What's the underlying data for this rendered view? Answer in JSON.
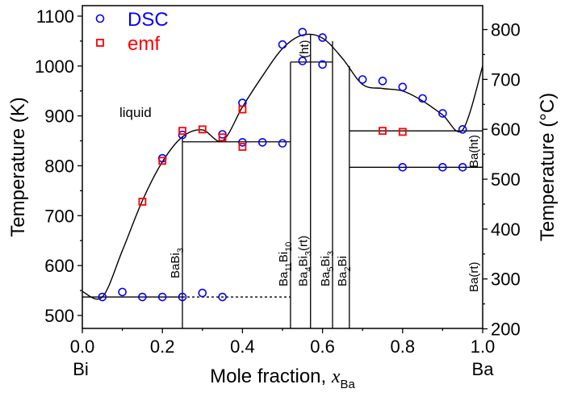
{
  "chart_data": {
    "type": "scatter",
    "title": "",
    "xlabel": "Mole fraction, ",
    "xlabel_var": "x",
    "xlabel_sub": "Ba",
    "ylabel": "Temperature (K)",
    "y2label": "Temperature (°C)",
    "xlim": [
      0,
      1
    ],
    "ylim": [
      474,
      1121
    ],
    "xticks": [
      "0.0",
      "0.2",
      "0.4",
      "0.6",
      "0.8",
      "1.0"
    ],
    "xtick_values": [
      0,
      0.2,
      0.4,
      0.6,
      0.8,
      1.0
    ],
    "yticks": [
      500,
      600,
      700,
      800,
      900,
      1000,
      1100
    ],
    "y2ticks": [
      200,
      300,
      400,
      500,
      600,
      700,
      800
    ],
    "end_labels": {
      "left": "Bi",
      "right": "Ba"
    },
    "legend": [
      {
        "name": "DSC",
        "color": "#0000ff",
        "marker": "circle"
      },
      {
        "name": "emf",
        "color": "#ff0000",
        "marker": "square"
      }
    ],
    "annotations": {
      "liquid": "liquid",
      "baht": "Ba(ht)",
      "bart": "Ba(rt)",
      "ht": "(ht)"
    },
    "phases": [
      {
        "name": "BaBi",
        "sub": "3",
        "x": 0.25
      },
      {
        "name": "Ba",
        "sub": "11",
        "name2": "Bi",
        "sub2": "10",
        "x": 0.52
      },
      {
        "name": "Ba",
        "sub": "4",
        "name2": "Bi",
        "sub2": "3",
        "suffix": "(rt)",
        "x": 0.57
      },
      {
        "name": "Ba",
        "sub": "5",
        "name2": "Bi",
        "sub2": "3",
        "x": 0.625
      },
      {
        "name": "Ba",
        "sub": "2",
        "name2": "Bi",
        "sub2": "",
        "x": 0.667
      }
    ],
    "series": [
      {
        "name": "DSC",
        "color": "#0000ff",
        "points": [
          [
            0.05,
            537
          ],
          [
            0.1,
            547
          ],
          [
            0.15,
            537
          ],
          [
            0.2,
            537
          ],
          [
            0.25,
            537
          ],
          [
            0.3,
            545
          ],
          [
            0.35,
            537
          ],
          [
            0.2,
            815
          ],
          [
            0.25,
            862
          ],
          [
            0.35,
            863
          ],
          [
            0.4,
            926
          ],
          [
            0.4,
            847
          ],
          [
            0.45,
            847
          ],
          [
            0.5,
            845
          ],
          [
            0.5,
            1043
          ],
          [
            0.55,
            1068
          ],
          [
            0.55,
            1010
          ],
          [
            0.6,
            1057
          ],
          [
            0.6,
            1003
          ],
          [
            0.7,
            973
          ],
          [
            0.75,
            970
          ],
          [
            0.8,
            958
          ],
          [
            0.85,
            935
          ],
          [
            0.9,
            905
          ],
          [
            0.95,
            873
          ],
          [
            0.8,
            797
          ],
          [
            0.9,
            797
          ],
          [
            0.95,
            797
          ]
        ]
      },
      {
        "name": "emf",
        "color": "#ff0000",
        "points": [
          [
            0.15,
            728
          ],
          [
            0.2,
            810
          ],
          [
            0.25,
            870
          ],
          [
            0.3,
            873
          ],
          [
            0.35,
            857
          ],
          [
            0.4,
            913
          ],
          [
            0.4,
            838
          ],
          [
            0.75,
            870
          ],
          [
            0.8,
            868
          ]
        ]
      }
    ],
    "liquidus": [
      [
        0,
        548
      ],
      [
        0.05,
        537
      ],
      [
        0.1,
        630
      ],
      [
        0.15,
        730
      ],
      [
        0.2,
        808
      ],
      [
        0.25,
        858
      ],
      [
        0.3,
        872
      ],
      [
        0.35,
        850
      ],
      [
        0.4,
        918
      ],
      [
        0.45,
        980
      ],
      [
        0.5,
        1035
      ],
      [
        0.55,
        1062
      ],
      [
        0.6,
        1056
      ],
      [
        0.65,
        1015
      ],
      [
        0.7,
        963
      ],
      [
        0.75,
        955
      ],
      [
        0.8,
        950
      ],
      [
        0.85,
        930
      ],
      [
        0.9,
        902
      ],
      [
        0.95,
        872
      ],
      [
        1.0,
        1000
      ]
    ]
  }
}
